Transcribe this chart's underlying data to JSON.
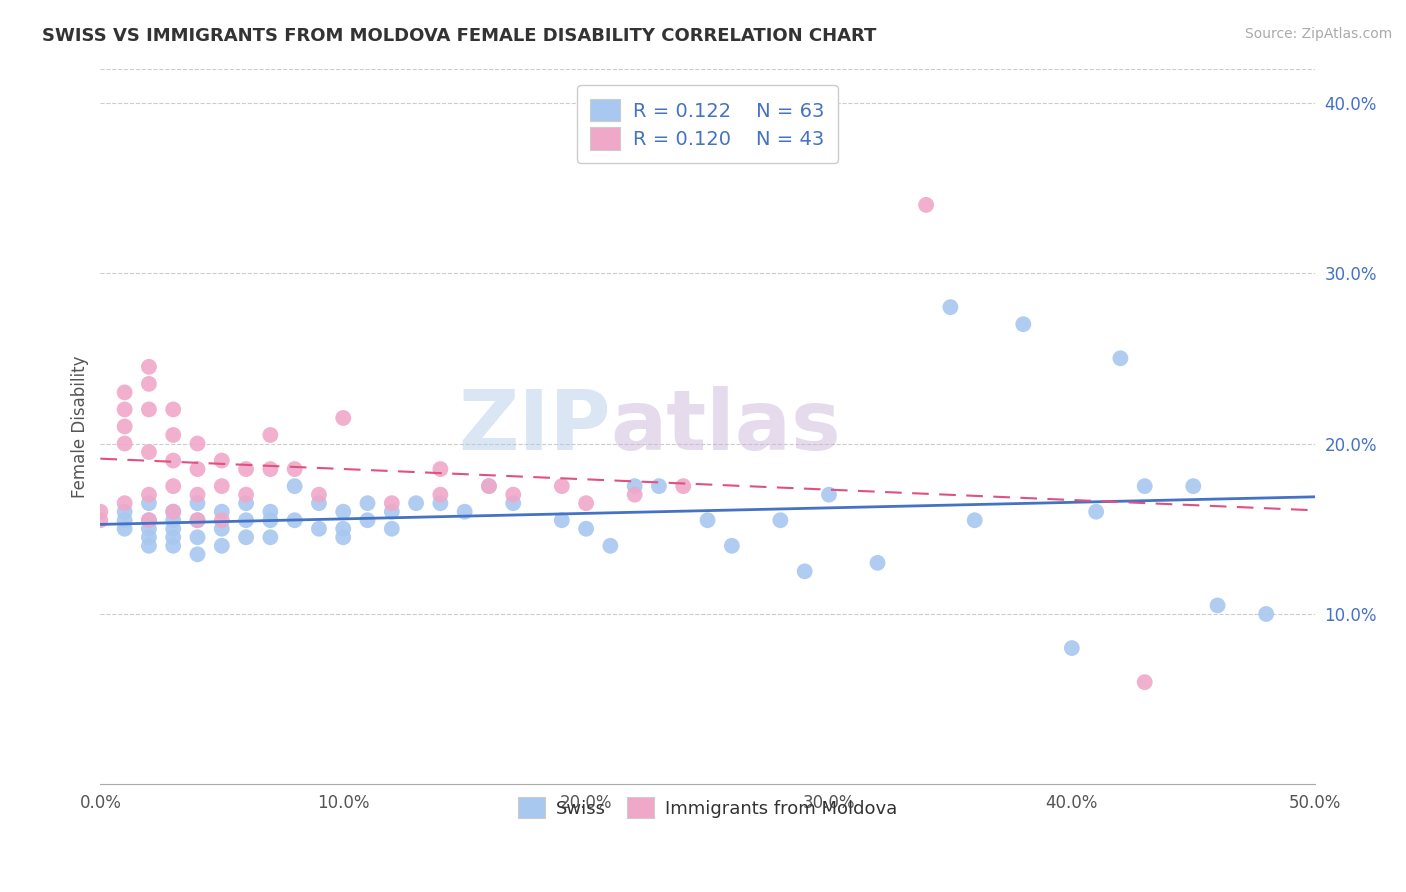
{
  "title": "SWISS VS IMMIGRANTS FROM MOLDOVA FEMALE DISABILITY CORRELATION CHART",
  "source_text": "Source: ZipAtlas.com",
  "xlabel": "",
  "ylabel": "Female Disability",
  "xlim": [
    0.0,
    0.5
  ],
  "ylim": [
    0.0,
    0.42
  ],
  "xticks": [
    0.0,
    0.1,
    0.2,
    0.3,
    0.4,
    0.5
  ],
  "xticklabels": [
    "0.0%",
    "10.0%",
    "20.0%",
    "30.0%",
    "40.0%",
    "50.0%"
  ],
  "yticks": [
    0.1,
    0.2,
    0.3,
    0.4
  ],
  "yticklabels": [
    "10.0%",
    "20.0%",
    "30.0%",
    "40.0%"
  ],
  "swiss_R": 0.122,
  "swiss_N": 63,
  "moldova_R": 0.12,
  "moldova_N": 43,
  "swiss_color": "#a8c8f0",
  "moldova_color": "#f0a8c8",
  "swiss_line_color": "#4472c4",
  "moldova_line_color": "#e05080",
  "legend_swiss_label": "Swiss",
  "legend_moldova_label": "Immigrants from Moldova",
  "watermark_part1": "ZIP",
  "watermark_part2": "atlas",
  "swiss_x": [
    0.01,
    0.01,
    0.01,
    0.02,
    0.02,
    0.02,
    0.02,
    0.02,
    0.03,
    0.03,
    0.03,
    0.03,
    0.03,
    0.04,
    0.04,
    0.04,
    0.04,
    0.05,
    0.05,
    0.05,
    0.06,
    0.06,
    0.06,
    0.07,
    0.07,
    0.07,
    0.08,
    0.08,
    0.09,
    0.09,
    0.1,
    0.1,
    0.1,
    0.11,
    0.11,
    0.12,
    0.12,
    0.13,
    0.14,
    0.15,
    0.16,
    0.17,
    0.19,
    0.2,
    0.21,
    0.22,
    0.23,
    0.25,
    0.26,
    0.28,
    0.29,
    0.3,
    0.32,
    0.35,
    0.36,
    0.38,
    0.4,
    0.41,
    0.42,
    0.43,
    0.45,
    0.46,
    0.48
  ],
  "swiss_y": [
    0.16,
    0.155,
    0.15,
    0.165,
    0.155,
    0.15,
    0.145,
    0.14,
    0.16,
    0.155,
    0.15,
    0.145,
    0.14,
    0.165,
    0.155,
    0.145,
    0.135,
    0.16,
    0.15,
    0.14,
    0.165,
    0.155,
    0.145,
    0.16,
    0.155,
    0.145,
    0.175,
    0.155,
    0.165,
    0.15,
    0.16,
    0.15,
    0.145,
    0.165,
    0.155,
    0.16,
    0.15,
    0.165,
    0.165,
    0.16,
    0.175,
    0.165,
    0.155,
    0.15,
    0.14,
    0.175,
    0.175,
    0.155,
    0.14,
    0.155,
    0.125,
    0.17,
    0.13,
    0.28,
    0.155,
    0.27,
    0.08,
    0.16,
    0.25,
    0.175,
    0.175,
    0.105,
    0.1
  ],
  "moldova_x": [
    0.0,
    0.0,
    0.01,
    0.01,
    0.01,
    0.01,
    0.01,
    0.02,
    0.02,
    0.02,
    0.02,
    0.02,
    0.02,
    0.03,
    0.03,
    0.03,
    0.03,
    0.03,
    0.04,
    0.04,
    0.04,
    0.04,
    0.05,
    0.05,
    0.05,
    0.06,
    0.06,
    0.07,
    0.07,
    0.08,
    0.09,
    0.1,
    0.12,
    0.14,
    0.14,
    0.16,
    0.17,
    0.19,
    0.2,
    0.22,
    0.24,
    0.34,
    0.43
  ],
  "moldova_y": [
    0.16,
    0.155,
    0.23,
    0.22,
    0.21,
    0.2,
    0.165,
    0.245,
    0.235,
    0.22,
    0.195,
    0.17,
    0.155,
    0.22,
    0.205,
    0.19,
    0.175,
    0.16,
    0.2,
    0.185,
    0.17,
    0.155,
    0.19,
    0.175,
    0.155,
    0.185,
    0.17,
    0.205,
    0.185,
    0.185,
    0.17,
    0.215,
    0.165,
    0.185,
    0.17,
    0.175,
    0.17,
    0.175,
    0.165,
    0.17,
    0.175,
    0.34,
    0.06
  ]
}
